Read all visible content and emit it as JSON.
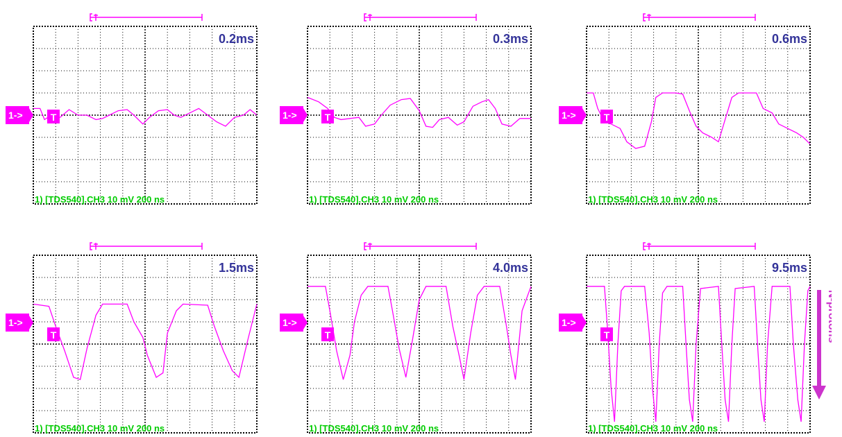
{
  "colors": {
    "trace": "#ff00ff",
    "grid": "#000000",
    "label": "#333399",
    "footer": "#00cc00"
  },
  "common": {
    "ref_marker": "1->",
    "trigger_marker": "T",
    "footer": "1) [TDS540].CH3  10 mV   200 ns"
  },
  "side_annotation": {
    "label": "N-protons"
  },
  "chart_data": [
    {
      "type": "line",
      "title": "0.2ms",
      "x_range": [
        0,
        10
      ],
      "y_range": [
        -4,
        4
      ],
      "trace": [
        [
          0,
          0.3
        ],
        [
          0.3,
          0.3
        ],
        [
          0.5,
          -0.2
        ],
        [
          0.8,
          0
        ],
        [
          1.2,
          -0.1
        ],
        [
          1.6,
          0.25
        ],
        [
          2,
          0
        ],
        [
          2.4,
          0
        ],
        [
          2.8,
          -0.2
        ],
        [
          3.1,
          -0.15
        ],
        [
          3.4,
          0
        ],
        [
          3.8,
          0.2
        ],
        [
          4.2,
          0.25
        ],
        [
          4.5,
          0
        ],
        [
          4.9,
          -0.4
        ],
        [
          5.2,
          -0.1
        ],
        [
          5.6,
          0.2
        ],
        [
          6,
          0.25
        ],
        [
          6.3,
          0
        ],
        [
          6.6,
          -0.1
        ],
        [
          7,
          0.1
        ],
        [
          7.4,
          0.3
        ],
        [
          7.8,
          0
        ],
        [
          8.2,
          -0.3
        ],
        [
          8.6,
          -0.5
        ],
        [
          9,
          -0.1
        ],
        [
          9.4,
          0
        ],
        [
          9.7,
          0.25
        ],
        [
          10,
          0
        ]
      ]
    },
    {
      "type": "line",
      "title": "0.3ms",
      "x_range": [
        0,
        10
      ],
      "y_range": [
        -4,
        4
      ],
      "trace": [
        [
          0,
          0.8
        ],
        [
          0.5,
          0.6
        ],
        [
          0.9,
          0.3
        ],
        [
          1.2,
          -0.1
        ],
        [
          1.5,
          -0.2
        ],
        [
          1.9,
          -0.15
        ],
        [
          2.3,
          -0.1
        ],
        [
          2.6,
          -0.5
        ],
        [
          3,
          -0.4
        ],
        [
          3.3,
          0
        ],
        [
          3.7,
          0.45
        ],
        [
          4.2,
          0.7
        ],
        [
          4.6,
          0.75
        ],
        [
          5,
          0.2
        ],
        [
          5.3,
          -0.5
        ],
        [
          5.6,
          -0.55
        ],
        [
          5.9,
          -0.2
        ],
        [
          6.3,
          -0.1
        ],
        [
          6.7,
          -0.45
        ],
        [
          7,
          -0.3
        ],
        [
          7.4,
          0.4
        ],
        [
          7.8,
          0.6
        ],
        [
          8.1,
          0.7
        ],
        [
          8.4,
          0.3
        ],
        [
          8.7,
          -0.4
        ],
        [
          9.1,
          -0.5
        ],
        [
          9.5,
          -0.15
        ],
        [
          10,
          -0.15
        ]
      ]
    },
    {
      "type": "line",
      "title": "0.6ms",
      "x_range": [
        0,
        10
      ],
      "y_range": [
        -4,
        4
      ],
      "trace": [
        [
          0,
          1.0
        ],
        [
          0.3,
          1.0
        ],
        [
          0.5,
          0.3
        ],
        [
          0.8,
          -0.3
        ],
        [
          1.1,
          -0.4
        ],
        [
          1.5,
          -0.6
        ],
        [
          1.8,
          -1.2
        ],
        [
          2.2,
          -1.5
        ],
        [
          2.6,
          -1.4
        ],
        [
          2.9,
          -0.3
        ],
        [
          3.1,
          0.8
        ],
        [
          3.4,
          1.0
        ],
        [
          4.0,
          1.0
        ],
        [
          4.3,
          0.95
        ],
        [
          4.6,
          0.2
        ],
        [
          4.9,
          -0.5
        ],
        [
          5.2,
          -0.8
        ],
        [
          5.6,
          -1.0
        ],
        [
          5.9,
          -1.2
        ],
        [
          6.2,
          -0.2
        ],
        [
          6.5,
          0.8
        ],
        [
          6.8,
          1.0
        ],
        [
          7.6,
          1.0
        ],
        [
          7.9,
          0.3
        ],
        [
          8.3,
          0.1
        ],
        [
          8.6,
          -0.4
        ],
        [
          9,
          -0.6
        ],
        [
          9.4,
          -0.8
        ],
        [
          9.7,
          -1.0
        ],
        [
          10,
          -1.3
        ]
      ]
    },
    {
      "type": "line",
      "title": "1.5ms",
      "x_range": [
        0,
        10
      ],
      "y_range": [
        -4,
        4
      ],
      "trace": [
        [
          0,
          1.8
        ],
        [
          0.7,
          1.7
        ],
        [
          1.0,
          0.8
        ],
        [
          1.4,
          -0.3
        ],
        [
          1.8,
          -1.5
        ],
        [
          2.1,
          -1.6
        ],
        [
          2.4,
          -0.2
        ],
        [
          2.8,
          1.3
        ],
        [
          3.1,
          1.8
        ],
        [
          4.2,
          1.8
        ],
        [
          4.5,
          1.0
        ],
        [
          4.9,
          0.3
        ],
        [
          5.1,
          -0.5
        ],
        [
          5.5,
          -1.5
        ],
        [
          5.8,
          -1.3
        ],
        [
          6.0,
          0.5
        ],
        [
          6.4,
          1.5
        ],
        [
          6.7,
          1.8
        ],
        [
          7.8,
          1.75
        ],
        [
          8.1,
          0.8
        ],
        [
          8.5,
          -0.3
        ],
        [
          8.9,
          -1.2
        ],
        [
          9.2,
          -1.5
        ],
        [
          9.6,
          0.2
        ],
        [
          10,
          1.8
        ]
      ]
    },
    {
      "type": "line",
      "title": "4.0ms",
      "x_range": [
        0,
        10
      ],
      "y_range": [
        -4,
        4
      ],
      "trace": [
        [
          0,
          2.6
        ],
        [
          0.8,
          2.6
        ],
        [
          1.0,
          1.5
        ],
        [
          1.3,
          -0.3
        ],
        [
          1.6,
          -1.6
        ],
        [
          1.9,
          -0.5
        ],
        [
          2.1,
          1.0
        ],
        [
          2.4,
          2.2
        ],
        [
          2.7,
          2.6
        ],
        [
          3.6,
          2.6
        ],
        [
          3.8,
          1.5
        ],
        [
          4.1,
          -0.2
        ],
        [
          4.4,
          -1.5
        ],
        [
          4.7,
          0.2
        ],
        [
          5.0,
          2.0
        ],
        [
          5.3,
          2.6
        ],
        [
          6.2,
          2.6
        ],
        [
          6.5,
          0.8
        ],
        [
          6.8,
          -0.6
        ],
        [
          7.0,
          -1.6
        ],
        [
          7.3,
          0.5
        ],
        [
          7.6,
          2.2
        ],
        [
          7.9,
          2.6
        ],
        [
          8.6,
          2.6
        ],
        [
          8.9,
          0.8
        ],
        [
          9.1,
          -0.5
        ],
        [
          9.3,
          -1.6
        ],
        [
          9.6,
          1.5
        ],
        [
          10,
          2.6
        ]
      ]
    },
    {
      "type": "line",
      "title": "9.5ms",
      "x_range": [
        0,
        10
      ],
      "y_range": [
        -4,
        4
      ],
      "trace": [
        [
          0,
          2.6
        ],
        [
          0.8,
          2.6
        ],
        [
          0.95,
          0.5
        ],
        [
          1.1,
          -2.0
        ],
        [
          1.25,
          -3.5
        ],
        [
          1.4,
          0
        ],
        [
          1.55,
          2.4
        ],
        [
          1.7,
          2.6
        ],
        [
          2.6,
          2.6
        ],
        [
          2.8,
          0.5
        ],
        [
          2.95,
          -2.0
        ],
        [
          3.1,
          -3.5
        ],
        [
          3.25,
          0
        ],
        [
          3.4,
          2.3
        ],
        [
          3.6,
          2.6
        ],
        [
          4.3,
          2.6
        ],
        [
          4.45,
          0
        ],
        [
          4.6,
          -2.5
        ],
        [
          4.75,
          -3.5
        ],
        [
          4.9,
          0
        ],
        [
          5.1,
          2.5
        ],
        [
          5.9,
          2.6
        ],
        [
          6.05,
          0
        ],
        [
          6.2,
          -2.5
        ],
        [
          6.35,
          -3.5
        ],
        [
          6.5,
          0
        ],
        [
          6.65,
          2.5
        ],
        [
          7.5,
          2.6
        ],
        [
          7.65,
          0
        ],
        [
          7.8,
          -2.5
        ],
        [
          7.95,
          -3.5
        ],
        [
          8.1,
          0
        ],
        [
          8.3,
          2.6
        ],
        [
          9.1,
          2.6
        ],
        [
          9.25,
          0
        ],
        [
          9.45,
          -2.5
        ],
        [
          9.6,
          -3.5
        ],
        [
          9.75,
          0
        ],
        [
          9.9,
          2.4
        ],
        [
          10,
          2.6
        ]
      ]
    }
  ]
}
